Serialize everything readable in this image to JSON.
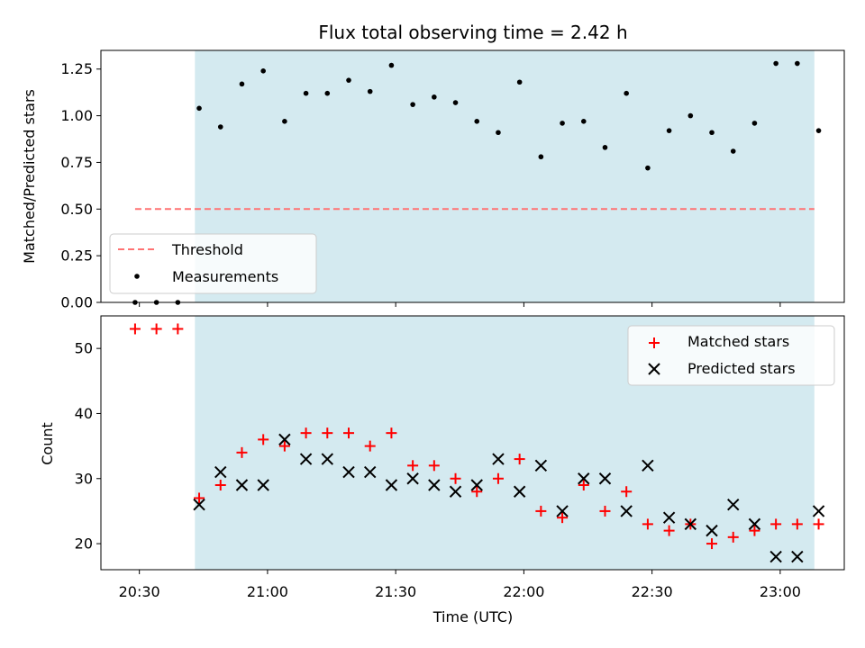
{
  "chart_data": [
    {
      "type": "scatter",
      "title": "Flux total observing time = 2.42 h",
      "xlabel": "",
      "ylabel": "Matched/Predicted stars",
      "ylim": [
        0,
        1.35
      ],
      "xlim": [
        "20:21",
        "23:15"
      ],
      "yticks": [
        "0.00",
        "0.25",
        "0.50",
        "0.75",
        "1.00",
        "1.25"
      ],
      "shaded_region": {
        "start": "20:43",
        "end": "23:08",
        "color": "#d4eaf0"
      },
      "legend_position": "lower-left",
      "threshold": {
        "name": "Threshold",
        "value": 0.5,
        "start": "20:29",
        "end": "23:08",
        "color": "#ff7373",
        "style": "dashed"
      },
      "series": [
        {
          "name": "Measurements",
          "color": "#000000",
          "marker": "dot",
          "points": [
            {
              "x": "20:29",
              "y": 0.0
            },
            {
              "x": "20:34",
              "y": 0.0
            },
            {
              "x": "20:39",
              "y": 0.0
            },
            {
              "x": "20:44",
              "y": 1.04
            },
            {
              "x": "20:49",
              "y": 0.94
            },
            {
              "x": "20:54",
              "y": 1.17
            },
            {
              "x": "20:59",
              "y": 1.24
            },
            {
              "x": "21:04",
              "y": 0.97
            },
            {
              "x": "21:09",
              "y": 1.12
            },
            {
              "x": "21:14",
              "y": 1.12
            },
            {
              "x": "21:19",
              "y": 1.19
            },
            {
              "x": "21:24",
              "y": 1.13
            },
            {
              "x": "21:29",
              "y": 1.27
            },
            {
              "x": "21:34",
              "y": 1.06
            },
            {
              "x": "21:39",
              "y": 1.1
            },
            {
              "x": "21:44",
              "y": 1.07
            },
            {
              "x": "21:49",
              "y": 0.97
            },
            {
              "x": "21:54",
              "y": 0.91
            },
            {
              "x": "21:59",
              "y": 1.18
            },
            {
              "x": "22:04",
              "y": 0.78
            },
            {
              "x": "22:09",
              "y": 0.96
            },
            {
              "x": "22:14",
              "y": 0.97
            },
            {
              "x": "22:19",
              "y": 0.83
            },
            {
              "x": "22:24",
              "y": 1.12
            },
            {
              "x": "22:29",
              "y": 0.72
            },
            {
              "x": "22:34",
              "y": 0.92
            },
            {
              "x": "22:39",
              "y": 1.0
            },
            {
              "x": "22:44",
              "y": 0.91
            },
            {
              "x": "22:49",
              "y": 0.81
            },
            {
              "x": "22:54",
              "y": 0.96
            },
            {
              "x": "22:59",
              "y": 1.28
            },
            {
              "x": "23:04",
              "y": 1.28
            },
            {
              "x": "23:09",
              "y": 0.92
            }
          ]
        }
      ]
    },
    {
      "type": "scatter",
      "title": "",
      "xlabel": "Time (UTC)",
      "ylabel": "Count",
      "ylim": [
        16,
        55
      ],
      "xlim": [
        "20:21",
        "23:15"
      ],
      "xticks": [
        "20:30",
        "21:00",
        "21:30",
        "22:00",
        "22:30",
        "23:00"
      ],
      "yticks": [
        "20",
        "30",
        "40",
        "50"
      ],
      "shaded_region": {
        "start": "20:43",
        "end": "23:08",
        "color": "#d4eaf0"
      },
      "legend_position": "upper-right",
      "series": [
        {
          "name": "Matched stars",
          "color": "#ff0000",
          "marker": "plus",
          "points": [
            {
              "x": "20:29",
              "y": 53
            },
            {
              "x": "20:34",
              "y": 53
            },
            {
              "x": "20:39",
              "y": 53
            },
            {
              "x": "20:44",
              "y": 27
            },
            {
              "x": "20:49",
              "y": 29
            },
            {
              "x": "20:54",
              "y": 34
            },
            {
              "x": "20:59",
              "y": 36
            },
            {
              "x": "21:04",
              "y": 35
            },
            {
              "x": "21:09",
              "y": 37
            },
            {
              "x": "21:14",
              "y": 37
            },
            {
              "x": "21:19",
              "y": 37
            },
            {
              "x": "21:24",
              "y": 35
            },
            {
              "x": "21:29",
              "y": 37
            },
            {
              "x": "21:34",
              "y": 32
            },
            {
              "x": "21:39",
              "y": 32
            },
            {
              "x": "21:44",
              "y": 30
            },
            {
              "x": "21:49",
              "y": 28
            },
            {
              "x": "21:54",
              "y": 30
            },
            {
              "x": "21:59",
              "y": 33
            },
            {
              "x": "22:04",
              "y": 25
            },
            {
              "x": "22:09",
              "y": 24
            },
            {
              "x": "22:14",
              "y": 29
            },
            {
              "x": "22:19",
              "y": 25
            },
            {
              "x": "22:24",
              "y": 28
            },
            {
              "x": "22:29",
              "y": 23
            },
            {
              "x": "22:34",
              "y": 22
            },
            {
              "x": "22:39",
              "y": 23
            },
            {
              "x": "22:44",
              "y": 20
            },
            {
              "x": "22:49",
              "y": 21
            },
            {
              "x": "22:54",
              "y": 22
            },
            {
              "x": "22:59",
              "y": 23
            },
            {
              "x": "23:04",
              "y": 23
            },
            {
              "x": "23:09",
              "y": 23
            }
          ]
        },
        {
          "name": "Predicted stars",
          "color": "#000000",
          "marker": "x",
          "points": [
            {
              "x": "20:44",
              "y": 26
            },
            {
              "x": "20:49",
              "y": 31
            },
            {
              "x": "20:54",
              "y": 29
            },
            {
              "x": "20:59",
              "y": 29
            },
            {
              "x": "21:04",
              "y": 36
            },
            {
              "x": "21:09",
              "y": 33
            },
            {
              "x": "21:14",
              "y": 33
            },
            {
              "x": "21:19",
              "y": 31
            },
            {
              "x": "21:24",
              "y": 31
            },
            {
              "x": "21:29",
              "y": 29
            },
            {
              "x": "21:34",
              "y": 30
            },
            {
              "x": "21:39",
              "y": 29
            },
            {
              "x": "21:44",
              "y": 28
            },
            {
              "x": "21:49",
              "y": 29
            },
            {
              "x": "21:54",
              "y": 33
            },
            {
              "x": "21:59",
              "y": 28
            },
            {
              "x": "22:04",
              "y": 32
            },
            {
              "x": "22:09",
              "y": 25
            },
            {
              "x": "22:14",
              "y": 30
            },
            {
              "x": "22:19",
              "y": 30
            },
            {
              "x": "22:24",
              "y": 25
            },
            {
              "x": "22:29",
              "y": 32
            },
            {
              "x": "22:34",
              "y": 24
            },
            {
              "x": "22:39",
              "y": 23
            },
            {
              "x": "22:44",
              "y": 22
            },
            {
              "x": "22:49",
              "y": 26
            },
            {
              "x": "22:54",
              "y": 23
            },
            {
              "x": "22:59",
              "y": 18
            },
            {
              "x": "23:04",
              "y": 18
            },
            {
              "x": "23:09",
              "y": 25
            }
          ]
        }
      ]
    }
  ]
}
